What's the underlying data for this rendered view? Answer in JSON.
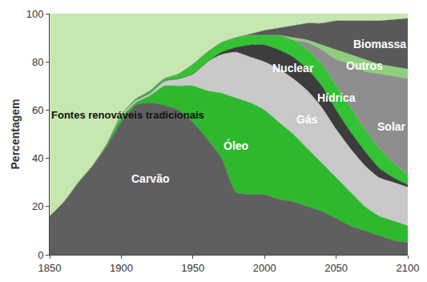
{
  "chart_data": {
    "type": "area",
    "stacked": true,
    "grid": false,
    "y_label": "Percentagem",
    "x": [
      1850,
      1860,
      1870,
      1880,
      1890,
      1900,
      1910,
      1920,
      1930,
      1940,
      1950,
      1960,
      1970,
      1980,
      1990,
      2000,
      2010,
      2020,
      2030,
      2040,
      2050,
      2060,
      2070,
      2080,
      2090,
      2100
    ],
    "xlim": [
      1850,
      2100
    ],
    "xticks": [
      1850,
      1900,
      1950,
      2000,
      2050,
      2100
    ],
    "ylim": [
      0,
      100
    ],
    "yticks": [
      0,
      20,
      40,
      60,
      80,
      100
    ],
    "series": [
      {
        "name": "Carvão",
        "color": "#5f5f5f",
        "values": [
          16,
          22,
          30,
          37,
          45,
          55,
          62,
          63,
          62,
          60,
          55,
          48,
          40,
          26,
          25,
          25,
          23,
          22,
          20,
          18,
          15,
          12,
          10,
          8,
          6,
          5
        ]
      },
      {
        "name": "Óleo",
        "color": "#2eb82e",
        "values": [
          0,
          0,
          0,
          0,
          1,
          2,
          1,
          3,
          8,
          10,
          15,
          20,
          27,
          39,
          38,
          35,
          32,
          28,
          24,
          20,
          17,
          14,
          10,
          8,
          8,
          7
        ]
      },
      {
        "name": "Gás",
        "color": "#c9c9c9",
        "values": [
          0,
          0,
          0,
          0,
          0,
          1,
          1,
          1,
          2,
          3,
          5,
          12,
          16,
          19,
          19,
          20,
          22,
          23,
          24,
          23,
          20,
          18,
          17,
          16,
          16,
          16
        ]
      },
      {
        "name": "Nuclear",
        "color": "#3c3c3c",
        "values": [
          0,
          0,
          0,
          0,
          0,
          0,
          0,
          0,
          0,
          0,
          0,
          0,
          1,
          2,
          5,
          7,
          8,
          9,
          9,
          9,
          8,
          7,
          6,
          4,
          2,
          1
        ]
      },
      {
        "name": "Hídrica",
        "color": "#33c233",
        "values": [
          0,
          0,
          0,
          0,
          0,
          0,
          0.5,
          1,
          1,
          2,
          4,
          4,
          4,
          4,
          4,
          4,
          6,
          7,
          8,
          9,
          10,
          10,
          9,
          8,
          6,
          4
        ]
      },
      {
        "name": "Solar",
        "color": "#8e8e8e",
        "values": [
          0,
          0,
          0,
          0,
          0,
          0,
          0,
          0,
          0,
          0,
          0,
          0,
          0,
          0,
          0,
          0,
          0,
          0,
          3,
          6,
          11,
          18,
          24,
          31,
          36,
          40
        ]
      },
      {
        "name": "Outros",
        "color": "#8fd07c",
        "values": [
          0,
          0,
          0,
          0,
          0,
          0,
          0,
          0,
          0,
          0,
          0,
          0,
          0,
          0,
          0,
          0,
          0,
          1,
          1,
          2,
          4,
          4,
          5,
          4,
          4,
          4
        ]
      },
      {
        "name": "Biomassa",
        "color": "#595959",
        "values": [
          0,
          0,
          0,
          0,
          0,
          0,
          0,
          0,
          0,
          0,
          0,
          0,
          0,
          0,
          0.5,
          2,
          3,
          5,
          7,
          9,
          12,
          14,
          16,
          18,
          19.5,
          21
        ]
      },
      {
        "name": "Fontes renováveis tradicionais",
        "color": "#c6e8b0",
        "values": [
          84,
          78,
          70,
          63,
          54,
          42,
          35.5,
          32,
          27,
          25,
          21,
          16,
          12,
          10,
          8.5,
          7,
          6,
          5,
          4,
          4,
          3,
          3,
          3,
          3,
          2.5,
          2
        ]
      }
    ]
  }
}
